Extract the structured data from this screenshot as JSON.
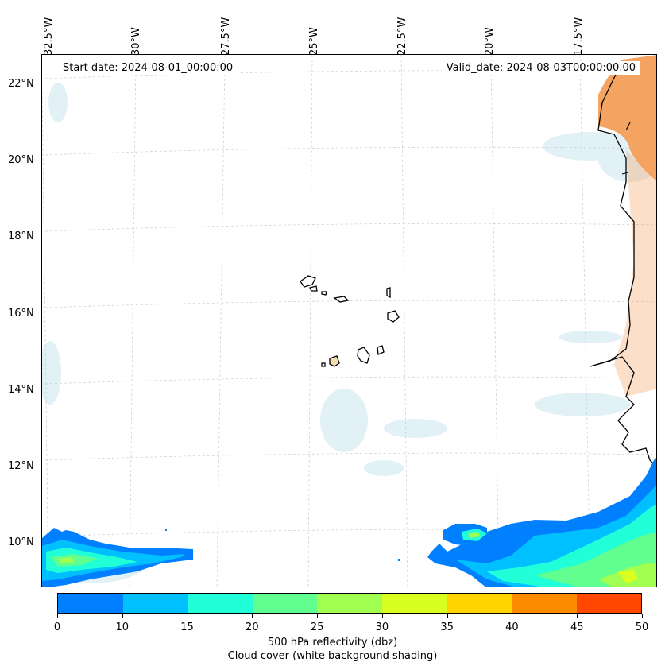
{
  "map": {
    "start_date": "Start date: 2024-08-01_00:00:00",
    "valid_date": "Valid_date: 2024-08-03T00:00:00.00",
    "lon_labels": [
      "32.5°W",
      "30°W",
      "27.5°W",
      "25°W",
      "22.5°W",
      "20°W",
      "17.5°W"
    ],
    "lat_labels": [
      "22°N",
      "20°N",
      "18°N",
      "16°N",
      "14°N",
      "12°N",
      "10°N"
    ],
    "grid": true,
    "land_fill_color": "#f4a460",
    "cloud_color": "#add8e6"
  },
  "colorbar": {
    "ticks": [
      "0",
      "10",
      "15",
      "20",
      "25",
      "30",
      "35",
      "40",
      "45",
      "50"
    ],
    "colors": [
      "#0080ff",
      "#00c0ff",
      "#20ffd8",
      "#60ff90",
      "#a0ff50",
      "#d8ff20",
      "#ffd400",
      "#ff8c00",
      "#ff4800"
    ],
    "label": "500 hPa reflectivity (dbz)",
    "sublabel": "Cloud cover (white background shading)"
  }
}
